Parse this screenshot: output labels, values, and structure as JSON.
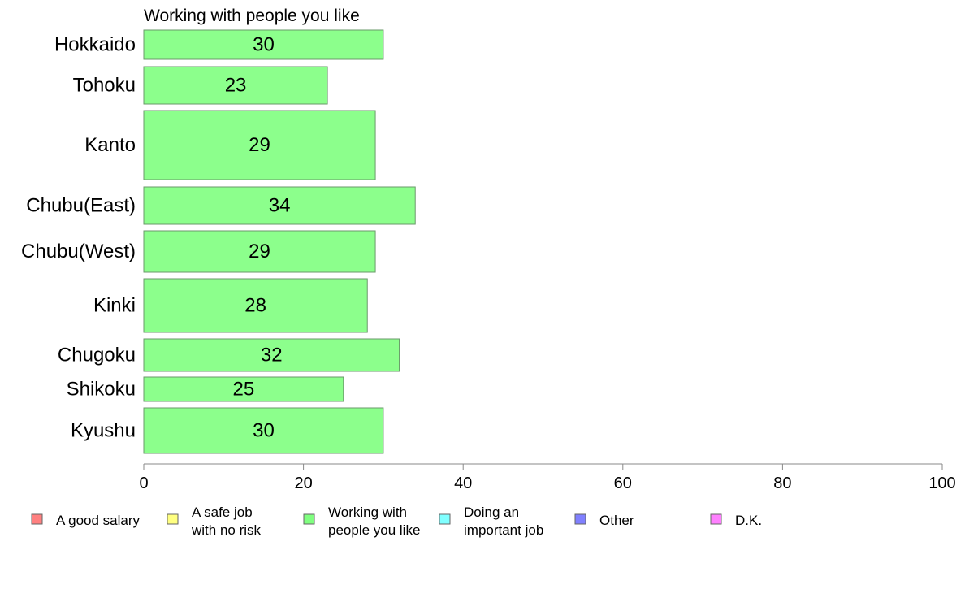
{
  "chart_data": {
    "type": "bar",
    "orientation": "horizontal",
    "panel_title": "Working with people you like",
    "categories": [
      "Hokkaido",
      "Tohoku",
      "Kanto",
      "Chubu(East)",
      "Chubu(West)",
      "Kinki",
      "Chugoku",
      "Shikoku",
      "Kyushu"
    ],
    "values": [
      30,
      23,
      29,
      34,
      29,
      28,
      32,
      25,
      30
    ],
    "xlim": [
      0,
      100
    ],
    "xticks": [
      "0",
      "20",
      "40",
      "60",
      "80",
      "100"
    ],
    "grid": false,
    "bar_color": "#8cff8c",
    "legend": {
      "placement": "bottom",
      "entries": [
        {
          "lines": [
            "A good salary"
          ],
          "color": "#ff8080"
        },
        {
          "lines": [
            "A safe job",
            "with no risk"
          ],
          "color": "#ffff80"
        },
        {
          "lines": [
            "Working with",
            "people you like"
          ],
          "color": "#80ff80"
        },
        {
          "lines": [
            "Doing an",
            "important job"
          ],
          "color": "#80ffff"
        },
        {
          "lines": [
            "Other"
          ],
          "color": "#8080ff"
        },
        {
          "lines": [
            "D.K."
          ],
          "color": "#ff80ff"
        }
      ]
    }
  }
}
